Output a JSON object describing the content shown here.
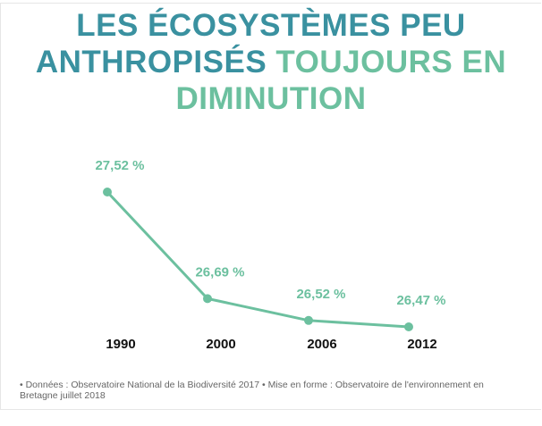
{
  "title": {
    "part1": "LES ÉCOSYSTÈMES PEU ANTHROPISÉS",
    "part2": "TOUJOURS EN DIMINUTION"
  },
  "colors": {
    "title_dark": "#3a91a0",
    "accent": "#6cc09f",
    "axis_text": "#111111"
  },
  "chart_data": {
    "type": "line",
    "categories": [
      "1990",
      "2000",
      "2006",
      "2012"
    ],
    "values": [
      27.52,
      26.69,
      26.52,
      26.47
    ],
    "data_labels": [
      "27,52 %",
      "26,69 %",
      "26,52 %",
      "26,47 %"
    ],
    "title": "LES ÉCOSYSTÈMES PEU ANTHROPISÉS TOUJOURS EN DIMINUTION",
    "xlabel": "",
    "ylabel": "",
    "grid": false,
    "legend": "none"
  },
  "source": "• Données : Observatoire National de la Biodiversité 2017 • Mise en forme : Observatoire de l'environnement en Bretagne juillet 2018"
}
